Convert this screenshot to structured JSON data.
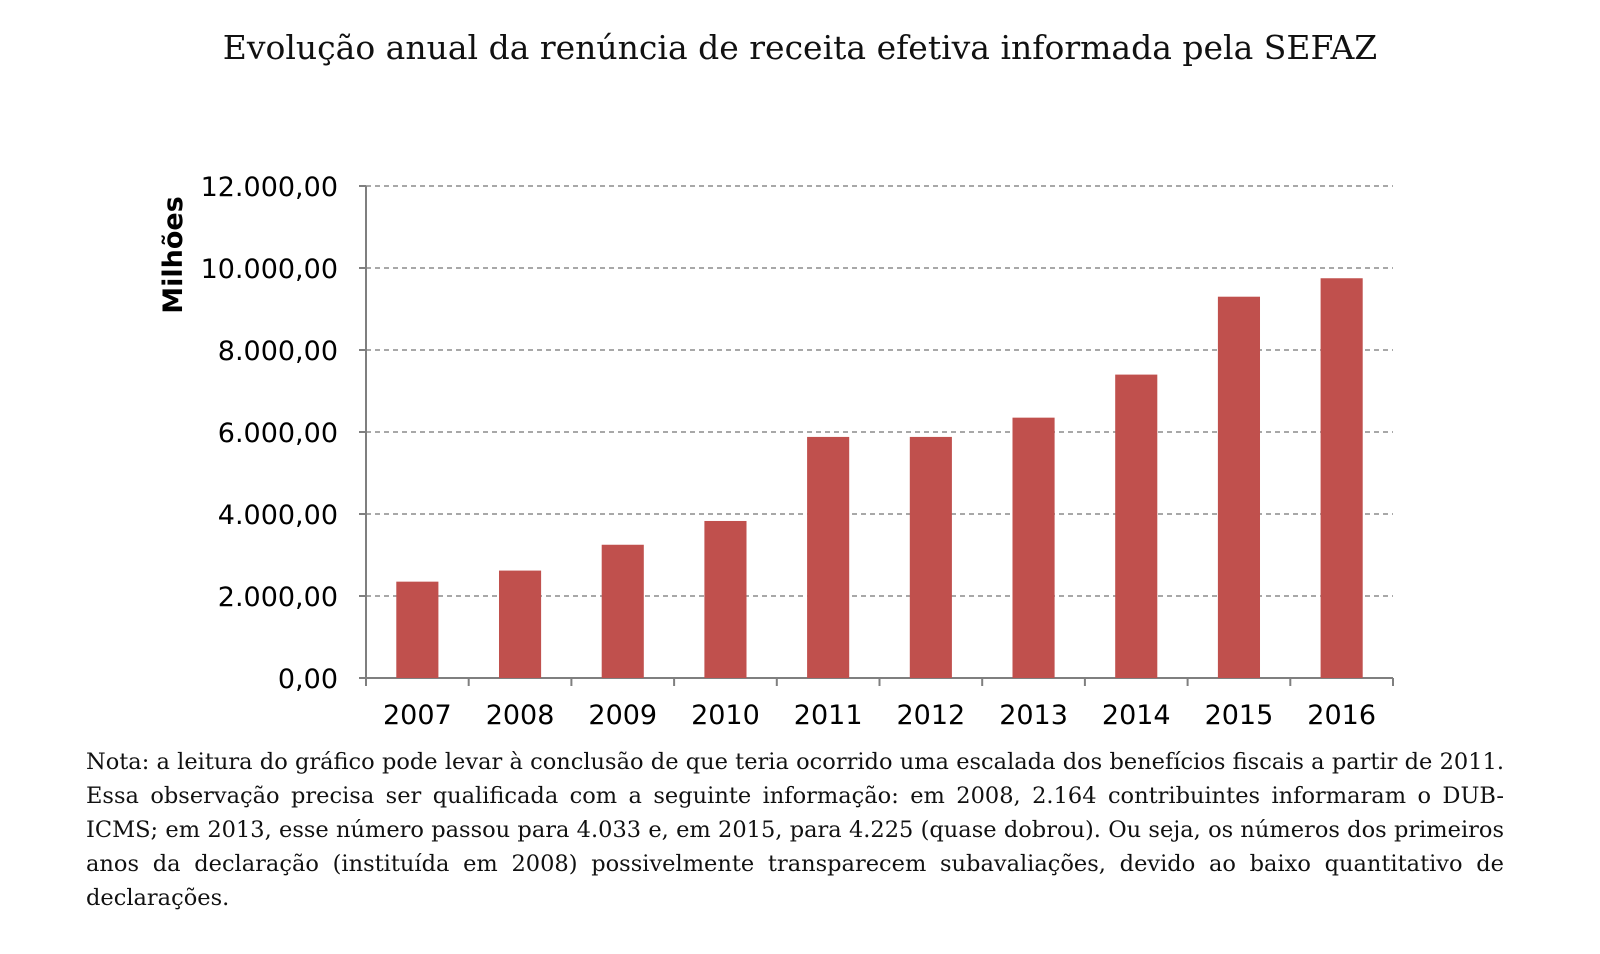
{
  "chart_data": {
    "type": "bar",
    "title": "Evolução anual da renúncia de receita efetiva informada pela SEFAZ",
    "xlabel": "",
    "ylabel": "Milhões",
    "categories": [
      "2007",
      "2008",
      "2009",
      "2010",
      "2011",
      "2012",
      "2013",
      "2014",
      "2015",
      "2016"
    ],
    "values": [
      2350,
      2620,
      3250,
      3830,
      5880,
      5880,
      6350,
      7400,
      9300,
      9750
    ],
    "ylim": [
      0,
      12000
    ],
    "y_ticks": [
      0,
      2000,
      4000,
      6000,
      8000,
      10000,
      12000
    ],
    "y_tick_labels": [
      "0,00",
      "2.000,00",
      "4.000,00",
      "6.000,00",
      "8.000,00",
      "10.000,00",
      "12.000,00"
    ],
    "grid": true,
    "grid_style": "dashed",
    "legend": "none",
    "bar_color": "#c0504d"
  },
  "note": "Nota: a leitura do gráfico pode levar à conclusão de que teria ocorrido uma escalada dos benefícios fiscais a partir de 2011. Essa observação precisa ser qualificada com a seguinte informação: em 2008, 2.164 contribuintes informaram o DUB-ICMS; em 2013, esse número passou para 4.033 e, em 2015, para 4.225 (quase dobrou). Ou seja, os números dos primeiros anos da declaração (instituída em 2008) possivelmente transparecem subavaliações, devido ao baixo quantitativo de declarações."
}
